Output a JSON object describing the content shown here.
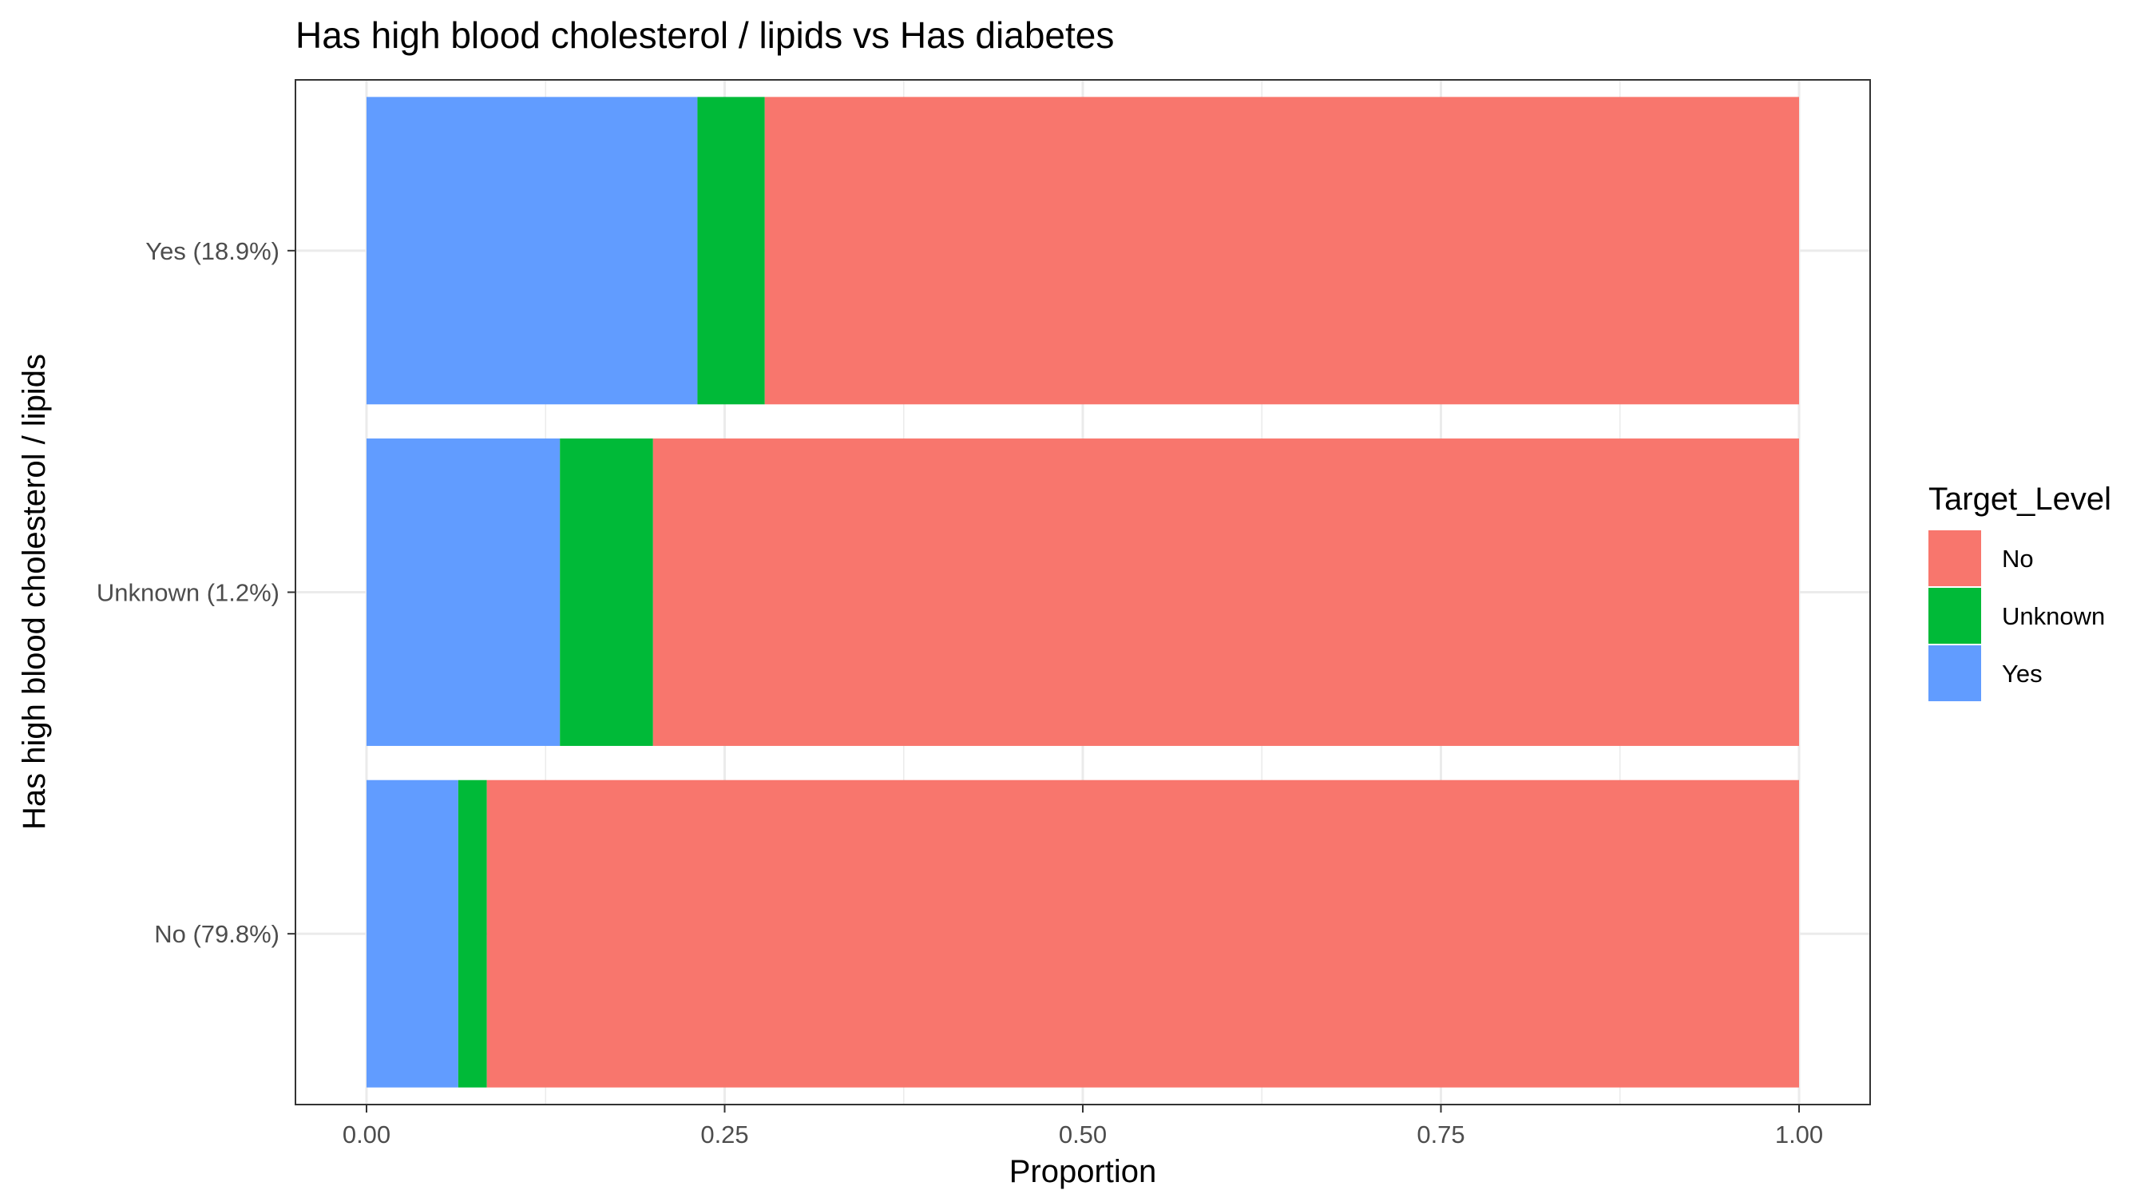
{
  "chart_data": {
    "type": "bar",
    "orientation": "horizontal",
    "stacked": true,
    "title": "Has high blood cholesterol / lipids vs Has diabetes",
    "xlabel": "Proportion",
    "ylabel": "Has high blood cholesterol / lipids",
    "xlim": [
      0,
      1
    ],
    "x_ticks": [
      "0.00",
      "0.25",
      "0.50",
      "0.75",
      "1.00"
    ],
    "x_tick_values": [
      0,
      0.25,
      0.5,
      0.75,
      1.0
    ],
    "categories": [
      "Yes (18.9%)",
      "Unknown (1.2%)",
      "No (79.8%)"
    ],
    "series": [
      {
        "name": "Yes",
        "color": "#619CFF",
        "values": [
          0.231,
          0.135,
          0.064
        ]
      },
      {
        "name": "Unknown",
        "color": "#00BA38",
        "values": [
          0.047,
          0.065,
          0.02
        ]
      },
      {
        "name": "No",
        "color": "#F8766D",
        "values": [
          0.722,
          0.8,
          0.916
        ]
      }
    ],
    "grid": true,
    "legend": {
      "title": "Target_Level",
      "placement": "right",
      "items": [
        {
          "label": "No",
          "color": "#F8766D"
        },
        {
          "label": "Unknown",
          "color": "#00BA38"
        },
        {
          "label": "Yes",
          "color": "#619CFF"
        }
      ]
    }
  }
}
